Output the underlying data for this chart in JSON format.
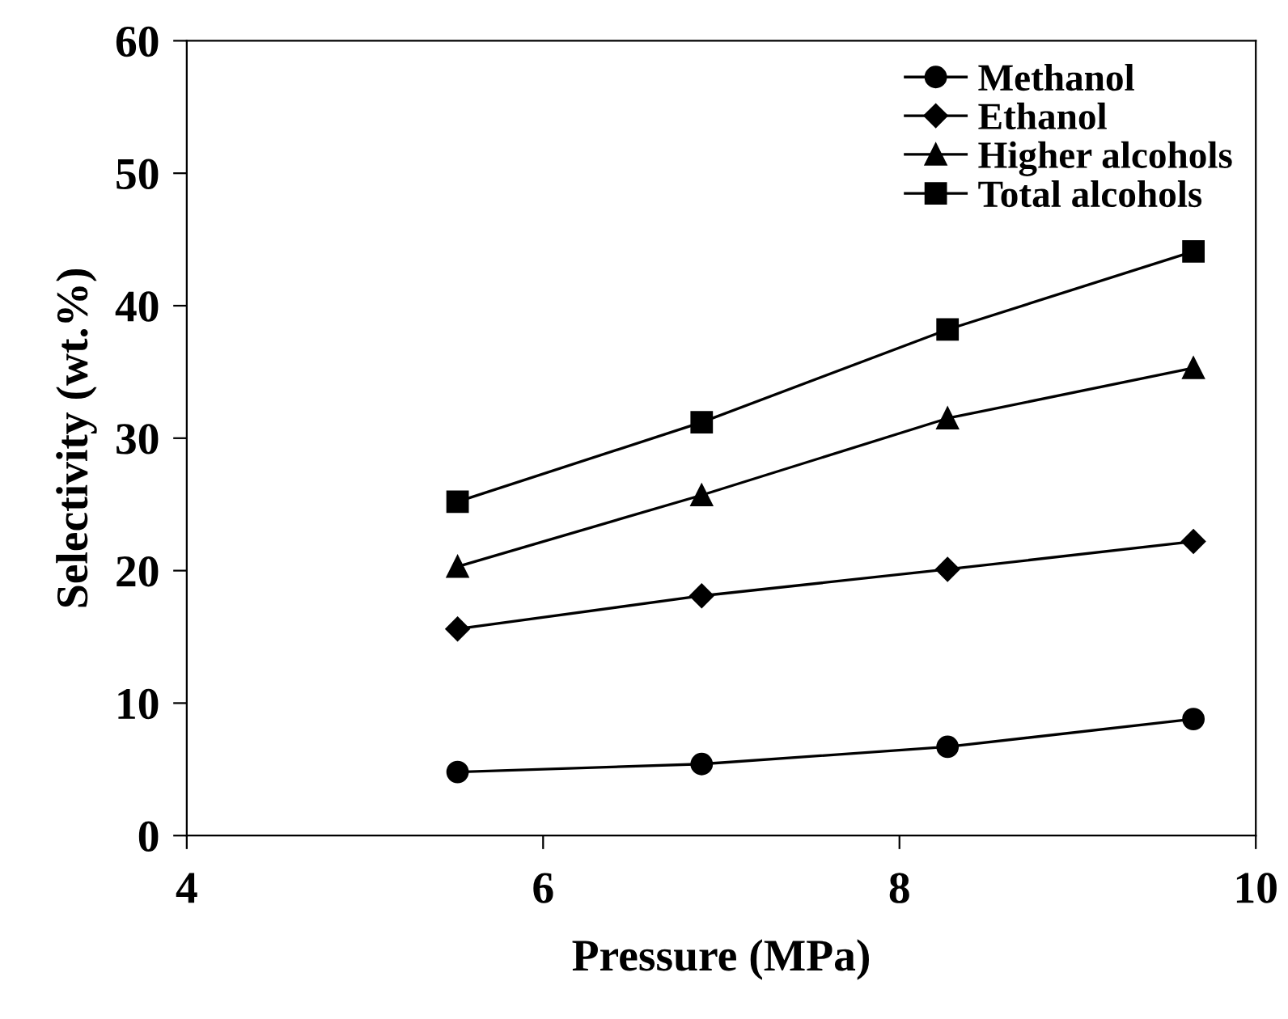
{
  "chart_data": {
    "type": "line",
    "xlabel": "Pressure (MPa)",
    "ylabel": "Selectivity (wt.%)",
    "x": [
      5.52,
      6.89,
      8.27,
      9.65
    ],
    "series": [
      {
        "name": "Methanol",
        "color": "#000000",
        "marker": "circle",
        "values": [
          4.8,
          5.4,
          6.7,
          8.8
        ]
      },
      {
        "name": "Ethanol",
        "color": "#000000",
        "marker": "diamond",
        "values": [
          15.6,
          18.1,
          20.1,
          22.2
        ]
      },
      {
        "name": "Higher alcohols",
        "color": "#000000",
        "marker": "triangle",
        "values": [
          20.3,
          25.7,
          31.5,
          35.3
        ]
      },
      {
        "name": "Total alcohols",
        "color": "#000000",
        "marker": "square",
        "values": [
          25.2,
          31.2,
          38.2,
          44.1
        ]
      }
    ],
    "xlim": [
      4,
      10
    ],
    "xticks": [
      4,
      6,
      8,
      10
    ],
    "ylim": [
      0,
      60
    ],
    "yticks": [
      0,
      10,
      20,
      30,
      40,
      50,
      60
    ],
    "grid": false,
    "legend": "top right",
    "line_style": "solid"
  }
}
